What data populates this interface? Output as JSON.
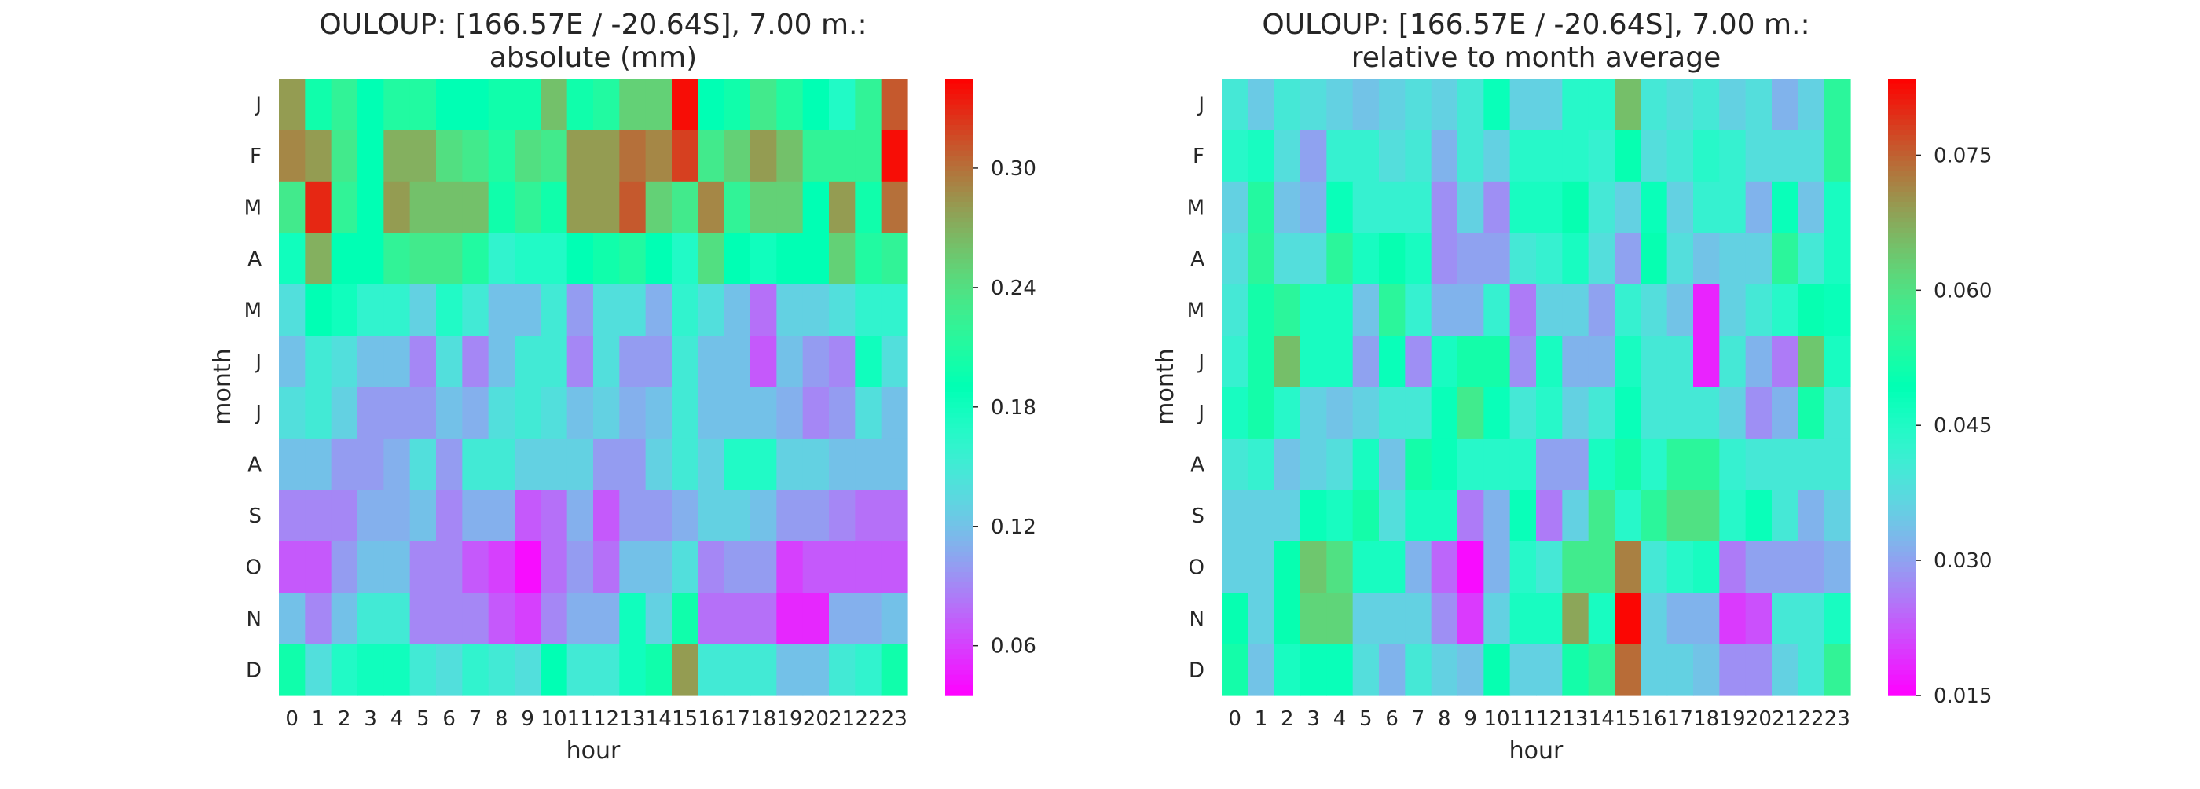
{
  "chart_data": [
    {
      "type": "heatmap",
      "title_line1": "OULOUP: [166.57E / -20.64S], 7.00 m.:",
      "title_line2": "absolute (mm)",
      "xlabel": "hour",
      "ylabel": "month",
      "x_categories": [
        "0",
        "1",
        "2",
        "3",
        "4",
        "5",
        "6",
        "7",
        "8",
        "9",
        "10",
        "11",
        "12",
        "13",
        "14",
        "15",
        "16",
        "17",
        "18",
        "19",
        "20",
        "21",
        "22",
        "23"
      ],
      "y_categories": [
        "J",
        "F",
        "M",
        "A",
        "M",
        "J",
        "J",
        "A",
        "S",
        "O",
        "N",
        "D"
      ],
      "colormap": "rainbow",
      "color_range": [
        0.035,
        0.345
      ],
      "colorbar_ticks": [
        "0.06",
        "0.12",
        "0.18",
        "0.24",
        "0.30"
      ],
      "colorbar_tick_values": [
        0.06,
        0.12,
        0.18,
        0.24,
        0.3
      ],
      "values": [
        [
          0.28,
          0.2,
          0.22,
          0.19,
          0.21,
          0.21,
          0.19,
          0.19,
          0.2,
          0.2,
          0.26,
          0.2,
          0.21,
          0.25,
          0.25,
          0.34,
          0.19,
          0.2,
          0.23,
          0.21,
          0.19,
          0.17,
          0.22,
          0.31
        ],
        [
          0.29,
          0.28,
          0.23,
          0.19,
          0.27,
          0.27,
          0.24,
          0.23,
          0.21,
          0.24,
          0.23,
          0.28,
          0.28,
          0.3,
          0.29,
          0.32,
          0.23,
          0.25,
          0.28,
          0.26,
          0.22,
          0.22,
          0.22,
          0.34
        ],
        [
          0.23,
          0.33,
          0.22,
          0.19,
          0.28,
          0.26,
          0.26,
          0.26,
          0.2,
          0.22,
          0.2,
          0.28,
          0.28,
          0.31,
          0.25,
          0.23,
          0.29,
          0.22,
          0.25,
          0.25,
          0.19,
          0.28,
          0.2,
          0.3
        ],
        [
          0.18,
          0.27,
          0.19,
          0.19,
          0.22,
          0.23,
          0.23,
          0.21,
          0.16,
          0.17,
          0.17,
          0.19,
          0.2,
          0.21,
          0.19,
          0.17,
          0.24,
          0.19,
          0.18,
          0.19,
          0.19,
          0.25,
          0.21,
          0.22
        ],
        [
          0.14,
          0.19,
          0.18,
          0.16,
          0.16,
          0.13,
          0.17,
          0.15,
          0.12,
          0.12,
          0.15,
          0.1,
          0.14,
          0.14,
          0.11,
          0.16,
          0.14,
          0.12,
          0.08,
          0.13,
          0.13,
          0.14,
          0.16,
          0.16
        ],
        [
          0.12,
          0.15,
          0.14,
          0.12,
          0.12,
          0.09,
          0.14,
          0.09,
          0.12,
          0.15,
          0.15,
          0.09,
          0.14,
          0.1,
          0.1,
          0.15,
          0.12,
          0.12,
          0.07,
          0.12,
          0.1,
          0.09,
          0.18,
          0.14
        ],
        [
          0.14,
          0.15,
          0.13,
          0.1,
          0.1,
          0.1,
          0.12,
          0.11,
          0.14,
          0.15,
          0.14,
          0.12,
          0.13,
          0.11,
          0.12,
          0.15,
          0.12,
          0.12,
          0.12,
          0.11,
          0.09,
          0.1,
          0.14,
          0.12
        ],
        [
          0.12,
          0.12,
          0.1,
          0.1,
          0.11,
          0.14,
          0.1,
          0.15,
          0.15,
          0.13,
          0.13,
          0.13,
          0.1,
          0.1,
          0.13,
          0.15,
          0.13,
          0.17,
          0.17,
          0.13,
          0.13,
          0.12,
          0.12,
          0.12
        ],
        [
          0.09,
          0.09,
          0.09,
          0.11,
          0.11,
          0.12,
          0.09,
          0.11,
          0.11,
          0.07,
          0.08,
          0.11,
          0.07,
          0.1,
          0.1,
          0.11,
          0.13,
          0.13,
          0.12,
          0.1,
          0.1,
          0.09,
          0.08,
          0.08
        ],
        [
          0.07,
          0.07,
          0.1,
          0.12,
          0.12,
          0.09,
          0.09,
          0.07,
          0.06,
          0.04,
          0.08,
          0.1,
          0.08,
          0.12,
          0.12,
          0.14,
          0.09,
          0.1,
          0.1,
          0.06,
          0.07,
          0.07,
          0.07,
          0.07
        ],
        [
          0.12,
          0.09,
          0.12,
          0.15,
          0.15,
          0.09,
          0.09,
          0.09,
          0.07,
          0.06,
          0.09,
          0.11,
          0.11,
          0.18,
          0.13,
          0.2,
          0.08,
          0.08,
          0.08,
          0.05,
          0.05,
          0.11,
          0.11,
          0.12
        ],
        [
          0.2,
          0.14,
          0.17,
          0.18,
          0.18,
          0.15,
          0.14,
          0.16,
          0.15,
          0.14,
          0.19,
          0.15,
          0.15,
          0.18,
          0.2,
          0.28,
          0.15,
          0.15,
          0.15,
          0.12,
          0.12,
          0.15,
          0.16,
          0.2
        ]
      ]
    },
    {
      "type": "heatmap",
      "title_line1": "OULOUP: [166.57E / -20.64S], 7.00 m.:",
      "title_line2": "relative to month average",
      "xlabel": "hour",
      "ylabel": "month",
      "x_categories": [
        "0",
        "1",
        "2",
        "3",
        "4",
        "5",
        "6",
        "7",
        "8",
        "9",
        "10",
        "11",
        "12",
        "13",
        "14",
        "15",
        "16",
        "17",
        "18",
        "19",
        "20",
        "21",
        "22",
        "23"
      ],
      "y_categories": [
        "J",
        "F",
        "M",
        "A",
        "M",
        "J",
        "J",
        "A",
        "S",
        "O",
        "N",
        "D"
      ],
      "colormap": "rainbow",
      "color_range": [
        0.015,
        0.0835
      ],
      "colorbar_ticks": [
        "0.015",
        "0.030",
        "0.045",
        "0.060",
        "0.075"
      ],
      "colorbar_tick_values": [
        0.015,
        0.03,
        0.045,
        0.06,
        0.075
      ],
      "values": [
        [
          0.04,
          0.035,
          0.04,
          0.038,
          0.036,
          0.034,
          0.036,
          0.038,
          0.036,
          0.04,
          0.048,
          0.036,
          0.036,
          0.044,
          0.044,
          0.065,
          0.04,
          0.038,
          0.04,
          0.036,
          0.038,
          0.032,
          0.036,
          0.055
        ],
        [
          0.044,
          0.046,
          0.038,
          0.03,
          0.042,
          0.042,
          0.038,
          0.04,
          0.032,
          0.04,
          0.036,
          0.044,
          0.044,
          0.044,
          0.042,
          0.05,
          0.038,
          0.04,
          0.044,
          0.042,
          0.038,
          0.038,
          0.038,
          0.055
        ],
        [
          0.036,
          0.054,
          0.034,
          0.032,
          0.048,
          0.042,
          0.042,
          0.042,
          0.028,
          0.036,
          0.028,
          0.046,
          0.046,
          0.05,
          0.04,
          0.036,
          0.048,
          0.036,
          0.042,
          0.042,
          0.032,
          0.048,
          0.034,
          0.046
        ],
        [
          0.038,
          0.055,
          0.038,
          0.038,
          0.055,
          0.046,
          0.05,
          0.046,
          0.028,
          0.03,
          0.03,
          0.04,
          0.042,
          0.046,
          0.038,
          0.03,
          0.05,
          0.038,
          0.034,
          0.036,
          0.036,
          0.055,
          0.04,
          0.046
        ],
        [
          0.04,
          0.052,
          0.055,
          0.046,
          0.046,
          0.034,
          0.055,
          0.042,
          0.032,
          0.032,
          0.042,
          0.026,
          0.036,
          0.036,
          0.03,
          0.042,
          0.038,
          0.034,
          0.018,
          0.036,
          0.04,
          0.044,
          0.05,
          0.048
        ],
        [
          0.042,
          0.052,
          0.065,
          0.046,
          0.046,
          0.03,
          0.048,
          0.028,
          0.046,
          0.052,
          0.052,
          0.028,
          0.046,
          0.032,
          0.032,
          0.046,
          0.04,
          0.04,
          0.018,
          0.04,
          0.032,
          0.026,
          0.064,
          0.046
        ],
        [
          0.046,
          0.052,
          0.044,
          0.036,
          0.034,
          0.036,
          0.04,
          0.04,
          0.048,
          0.058,
          0.048,
          0.04,
          0.044,
          0.036,
          0.04,
          0.048,
          0.04,
          0.04,
          0.04,
          0.036,
          0.028,
          0.032,
          0.052,
          0.04
        ],
        [
          0.04,
          0.042,
          0.034,
          0.036,
          0.038,
          0.046,
          0.034,
          0.052,
          0.048,
          0.044,
          0.044,
          0.044,
          0.03,
          0.03,
          0.046,
          0.052,
          0.044,
          0.055,
          0.055,
          0.042,
          0.04,
          0.04,
          0.04,
          0.04
        ],
        [
          0.036,
          0.036,
          0.036,
          0.048,
          0.046,
          0.052,
          0.038,
          0.046,
          0.046,
          0.026,
          0.032,
          0.048,
          0.026,
          0.036,
          0.058,
          0.044,
          0.055,
          0.06,
          0.06,
          0.044,
          0.048,
          0.04,
          0.032,
          0.036
        ],
        [
          0.036,
          0.036,
          0.05,
          0.064,
          0.06,
          0.046,
          0.046,
          0.032,
          0.024,
          0.016,
          0.032,
          0.044,
          0.04,
          0.058,
          0.058,
          0.072,
          0.04,
          0.044,
          0.046,
          0.026,
          0.03,
          0.03,
          0.03,
          0.032
        ],
        [
          0.05,
          0.036,
          0.05,
          0.062,
          0.062,
          0.036,
          0.036,
          0.036,
          0.028,
          0.02,
          0.036,
          0.046,
          0.046,
          0.068,
          0.046,
          0.083,
          0.036,
          0.032,
          0.032,
          0.02,
          0.022,
          0.04,
          0.04,
          0.046
        ],
        [
          0.052,
          0.034,
          0.046,
          0.048,
          0.048,
          0.038,
          0.032,
          0.04,
          0.036,
          0.034,
          0.05,
          0.036,
          0.036,
          0.052,
          0.056,
          0.074,
          0.036,
          0.036,
          0.034,
          0.028,
          0.028,
          0.036,
          0.04,
          0.056
        ]
      ]
    }
  ]
}
